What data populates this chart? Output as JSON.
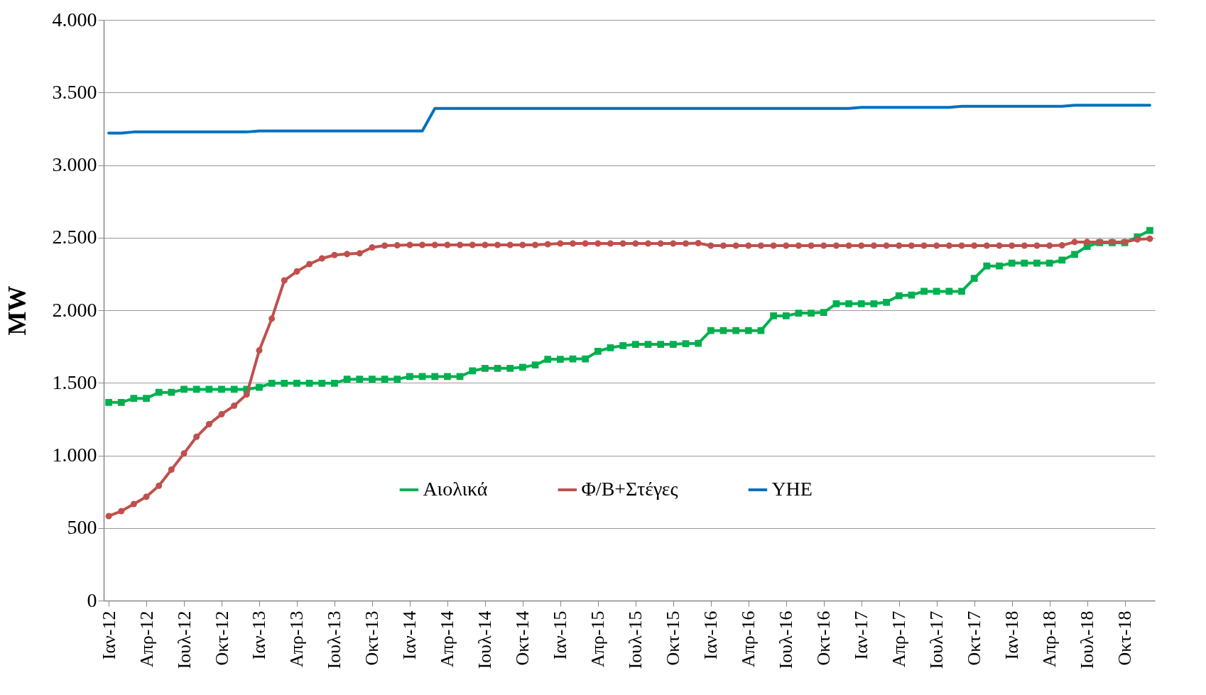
{
  "chart_data": {
    "type": "line",
    "categories": [
      "Ιαν-12",
      null,
      null,
      "Απρ-12",
      null,
      null,
      "Ιουλ-12",
      null,
      null,
      "Οκτ-12",
      null,
      null,
      "Ιαν-13",
      null,
      null,
      "Απρ-13",
      null,
      null,
      "Ιουλ-13",
      null,
      null,
      "Οκτ-13",
      null,
      null,
      "Ιαν-14",
      null,
      null,
      "Απρ-14",
      null,
      null,
      "Ιουλ-14",
      null,
      null,
      "Οκτ-14",
      null,
      null,
      "Ιαν-15",
      null,
      null,
      "Απρ-15",
      null,
      null,
      "Ιουλ-15",
      null,
      null,
      "Οκτ-15",
      null,
      null,
      "Ιαν-16",
      null,
      null,
      "Απρ-16",
      null,
      null,
      "Ιουλ-16",
      null,
      null,
      "Οκτ-16",
      null,
      null,
      "Ιαν-17",
      null,
      null,
      "Απρ-17",
      null,
      null,
      "Ιουλ-17",
      null,
      null,
      "Οκτ-17",
      null,
      null,
      "Ιαν-18",
      null,
      null,
      "Απρ-18",
      null,
      null,
      "Ιουλ-18",
      null,
      null,
      "Οκτ-18",
      null,
      null
    ],
    "series": [
      {
        "name": "Αιολικά",
        "color": "#00b050",
        "marker": "square",
        "values": [
          1365,
          1365,
          1393,
          1393,
          1434,
          1434,
          1455,
          1455,
          1455,
          1455,
          1455,
          1455,
          1469,
          1497,
          1497,
          1497,
          1497,
          1497,
          1497,
          1525,
          1525,
          1525,
          1525,
          1525,
          1543,
          1543,
          1543,
          1543,
          1543,
          1582,
          1600,
          1600,
          1600,
          1607,
          1623,
          1662,
          1662,
          1665,
          1665,
          1717,
          1742,
          1756,
          1765,
          1765,
          1765,
          1765,
          1770,
          1772,
          1860,
          1860,
          1860,
          1860,
          1860,
          1961,
          1961,
          1980,
          1980,
          1985,
          2045,
          2045,
          2045,
          2045,
          2055,
          2100,
          2105,
          2130,
          2130,
          2130,
          2130,
          2220,
          2305,
          2305,
          2325,
          2325,
          2325,
          2325,
          2345,
          2385,
          2440,
          2465,
          2465,
          2465,
          2505,
          2550
        ]
      },
      {
        "name": "Φ/Β+Στέγες",
        "color": "#c0504d",
        "marker": "circle",
        "values": [
          582,
          616,
          665,
          715,
          791,
          902,
          1013,
          1128,
          1215,
          1284,
          1342,
          1420,
          1723,
          1942,
          2205,
          2267,
          2318,
          2357,
          2380,
          2387,
          2392,
          2433,
          2445,
          2447,
          2450,
          2450,
          2450,
          2450,
          2450,
          2450,
          2450,
          2450,
          2450,
          2450,
          2450,
          2455,
          2460,
          2460,
          2460,
          2460,
          2460,
          2460,
          2460,
          2460,
          2460,
          2460,
          2460,
          2462,
          2445,
          2445,
          2445,
          2445,
          2445,
          2445,
          2445,
          2445,
          2445,
          2445,
          2445,
          2445,
          2445,
          2445,
          2445,
          2445,
          2445,
          2445,
          2445,
          2445,
          2445,
          2445,
          2445,
          2445,
          2445,
          2445,
          2445,
          2445,
          2447,
          2470,
          2470,
          2470,
          2470,
          2470,
          2488,
          2493
        ]
      },
      {
        "name": "YHE",
        "color": "#0070c0",
        "marker": "none",
        "values": [
          3220,
          3220,
          3228,
          3228,
          3228,
          3228,
          3228,
          3228,
          3228,
          3228,
          3228,
          3228,
          3235,
          3235,
          3235,
          3235,
          3235,
          3235,
          3235,
          3235,
          3235,
          3235,
          3235,
          3235,
          3235,
          3235,
          3390,
          3390,
          3390,
          3390,
          3390,
          3390,
          3390,
          3390,
          3390,
          3390,
          3390,
          3390,
          3390,
          3390,
          3390,
          3390,
          3390,
          3390,
          3390,
          3390,
          3390,
          3390,
          3390,
          3390,
          3390,
          3390,
          3390,
          3390,
          3390,
          3390,
          3390,
          3390,
          3390,
          3390,
          3397,
          3397,
          3397,
          3397,
          3397,
          3397,
          3397,
          3397,
          3405,
          3405,
          3405,
          3405,
          3405,
          3405,
          3405,
          3405,
          3405,
          3412,
          3412,
          3412,
          3412,
          3412,
          3412,
          3412
        ]
      }
    ],
    "ylabel": "MW",
    "ylim": [
      0,
      4000
    ],
    "yticks": [
      {
        "value": 0,
        "label": "0"
      },
      {
        "value": 500,
        "label": "500"
      },
      {
        "value": 1000,
        "label": "1.000"
      },
      {
        "value": 1500,
        "label": "1.500"
      },
      {
        "value": 2000,
        "label": "2.000"
      },
      {
        "value": 2500,
        "label": "2.500"
      },
      {
        "value": 3000,
        "label": "3.000"
      },
      {
        "value": 3500,
        "label": "3.500"
      },
      {
        "value": 4000,
        "label": "4.000"
      }
    ],
    "grid": "y",
    "legend": "bottom"
  }
}
